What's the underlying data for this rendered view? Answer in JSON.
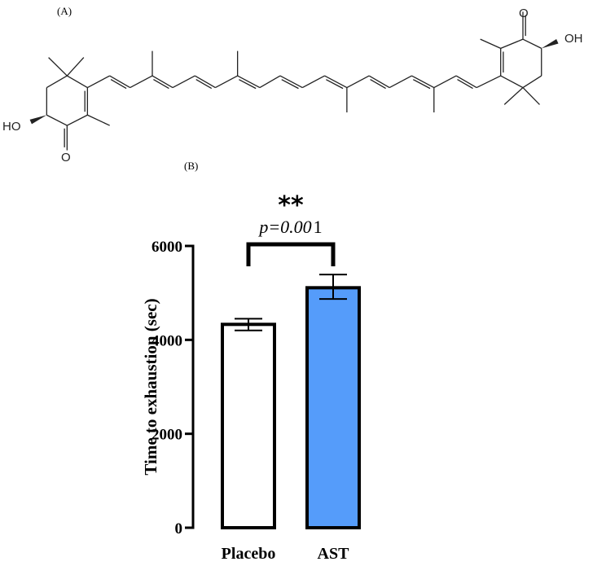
{
  "panel_a": {
    "label": "(A)",
    "atom_labels": {
      "ho_left": "HO",
      "o_left": "O",
      "o_right": "O",
      "oh_right": "OH"
    }
  },
  "panel_b": {
    "label": "(B)"
  },
  "chart_data": {
    "type": "bar",
    "categories": [
      "Placebo",
      "AST"
    ],
    "values": [
      4330,
      5110
    ],
    "error_low": [
      4200,
      4870
    ],
    "error_high": [
      4450,
      5390
    ],
    "bar_colors": [
      "#ffffff",
      "#559cfa"
    ],
    "ylabel": "Time to exhaustion (sec)",
    "xlabel": "",
    "ylim": [
      0,
      6000
    ],
    "yticks": [
      "0",
      "2000",
      "4000",
      "6000"
    ],
    "annotation": {
      "stars": "**",
      "p_prefix": "p=0.00",
      "p_suffix": "1"
    },
    "grid": false
  }
}
